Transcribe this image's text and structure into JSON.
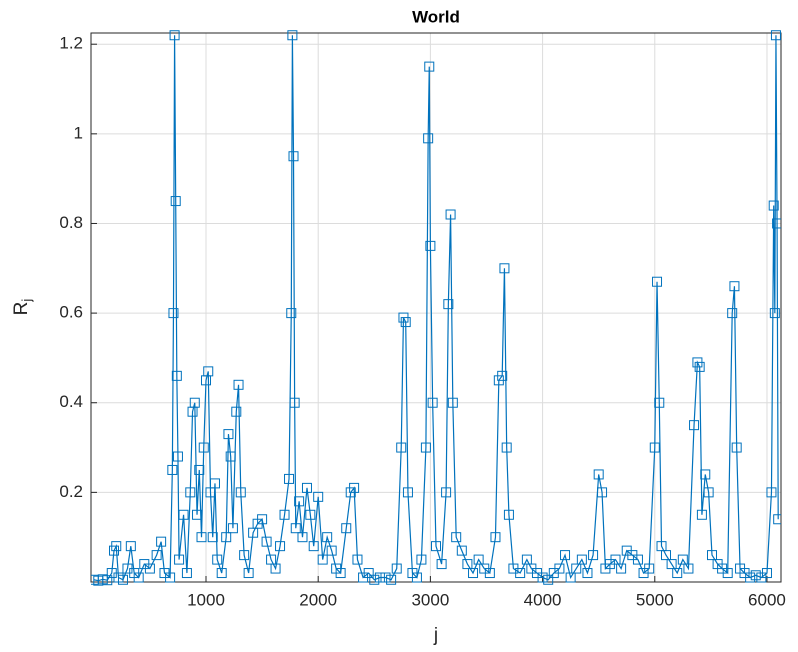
{
  "chart_data": {
    "type": "line",
    "title": "World",
    "x_label": "j",
    "y_label": "R",
    "y_label_subscript": "j",
    "x": [
      0,
      40,
      80,
      120,
      160,
      180,
      200,
      220,
      260,
      300,
      330,
      360,
      400,
      450,
      500,
      560,
      600,
      630,
      680,
      700,
      710,
      720,
      730,
      740,
      750,
      760,
      800,
      830,
      860,
      880,
      900,
      920,
      940,
      960,
      980,
      1000,
      1020,
      1040,
      1060,
      1080,
      1100,
      1140,
      1180,
      1200,
      1220,
      1240,
      1270,
      1290,
      1310,
      1340,
      1380,
      1420,
      1460,
      1500,
      1540,
      1580,
      1620,
      1660,
      1700,
      1740,
      1760,
      1770,
      1780,
      1790,
      1800,
      1830,
      1860,
      1900,
      1930,
      1960,
      2000,
      2040,
      2080,
      2120,
      2160,
      2200,
      2250,
      2290,
      2320,
      2350,
      2400,
      2450,
      2500,
      2550,
      2600,
      2650,
      2700,
      2740,
      2760,
      2780,
      2800,
      2840,
      2880,
      2920,
      2960,
      2980,
      2990,
      3000,
      3020,
      3050,
      3100,
      3140,
      3160,
      3180,
      3200,
      3230,
      3280,
      3330,
      3380,
      3430,
      3480,
      3530,
      3580,
      3610,
      3640,
      3660,
      3680,
      3700,
      3740,
      3800,
      3860,
      3900,
      3950,
      4000,
      4050,
      4100,
      4150,
      4200,
      4250,
      4300,
      4350,
      4400,
      4450,
      4500,
      4530,
      4560,
      4600,
      4650,
      4700,
      4750,
      4800,
      4850,
      4900,
      4950,
      5000,
      5020,
      5040,
      5060,
      5100,
      5150,
      5200,
      5250,
      5300,
      5350,
      5380,
      5400,
      5420,
      5450,
      5480,
      5510,
      5560,
      5600,
      5650,
      5690,
      5710,
      5730,
      5760,
      5800,
      5850,
      5900,
      5950,
      6000,
      6040,
      6060,
      6070,
      6080,
      6090,
      6100
    ],
    "series": [
      {
        "color": "#0072bd",
        "marker": "square",
        "values": [
          0.005,
          0.003,
          0.006,
          0.004,
          0.02,
          0.07,
          0.08,
          0.01,
          0.005,
          0.03,
          0.08,
          0.02,
          0.01,
          0.04,
          0.03,
          0.06,
          0.09,
          0.02,
          0.01,
          0.25,
          0.6,
          1.22,
          0.85,
          0.46,
          0.28,
          0.05,
          0.15,
          0.02,
          0.2,
          0.38,
          0.4,
          0.15,
          0.25,
          0.1,
          0.3,
          0.45,
          0.47,
          0.2,
          0.1,
          0.22,
          0.05,
          0.02,
          0.1,
          0.33,
          0.28,
          0.12,
          0.38,
          0.44,
          0.2,
          0.06,
          0.02,
          0.11,
          0.13,
          0.14,
          0.09,
          0.05,
          0.03,
          0.08,
          0.15,
          0.23,
          0.6,
          1.22,
          0.95,
          0.4,
          0.12,
          0.18,
          0.1,
          0.21,
          0.15,
          0.08,
          0.19,
          0.05,
          0.1,
          0.07,
          0.03,
          0.02,
          0.12,
          0.2,
          0.21,
          0.05,
          0.01,
          0.02,
          0.005,
          0.01,
          0.01,
          0.005,
          0.03,
          0.3,
          0.59,
          0.58,
          0.2,
          0.02,
          0.01,
          0.05,
          0.3,
          0.99,
          1.15,
          0.75,
          0.4,
          0.08,
          0.04,
          0.2,
          0.62,
          0.82,
          0.4,
          0.1,
          0.07,
          0.04,
          0.02,
          0.05,
          0.03,
          0.02,
          0.1,
          0.45,
          0.46,
          0.7,
          0.3,
          0.15,
          0.03,
          0.02,
          0.05,
          0.03,
          0.02,
          0.01,
          0.005,
          0.02,
          0.03,
          0.06,
          0.01,
          0.03,
          0.05,
          0.02,
          0.06,
          0.24,
          0.2,
          0.03,
          0.04,
          0.05,
          0.03,
          0.07,
          0.06,
          0.05,
          0.02,
          0.03,
          0.3,
          0.67,
          0.4,
          0.08,
          0.06,
          0.04,
          0.02,
          0.05,
          0.03,
          0.35,
          0.49,
          0.48,
          0.15,
          0.24,
          0.2,
          0.06,
          0.04,
          0.03,
          0.02,
          0.6,
          0.66,
          0.3,
          0.03,
          0.02,
          0.01,
          0.015,
          0.01,
          0.02,
          0.2,
          0.84,
          0.6,
          1.22,
          0.8,
          0.14
        ]
      }
    ],
    "xlim": [
      -25,
      6125
    ],
    "xticks": [
      1000,
      2000,
      3000,
      4000,
      5000,
      6000
    ],
    "ylim": [
      0,
      1.225
    ],
    "yticks": [
      0.2,
      0.4,
      0.6,
      0.8,
      1,
      1.2
    ],
    "grid": true
  }
}
